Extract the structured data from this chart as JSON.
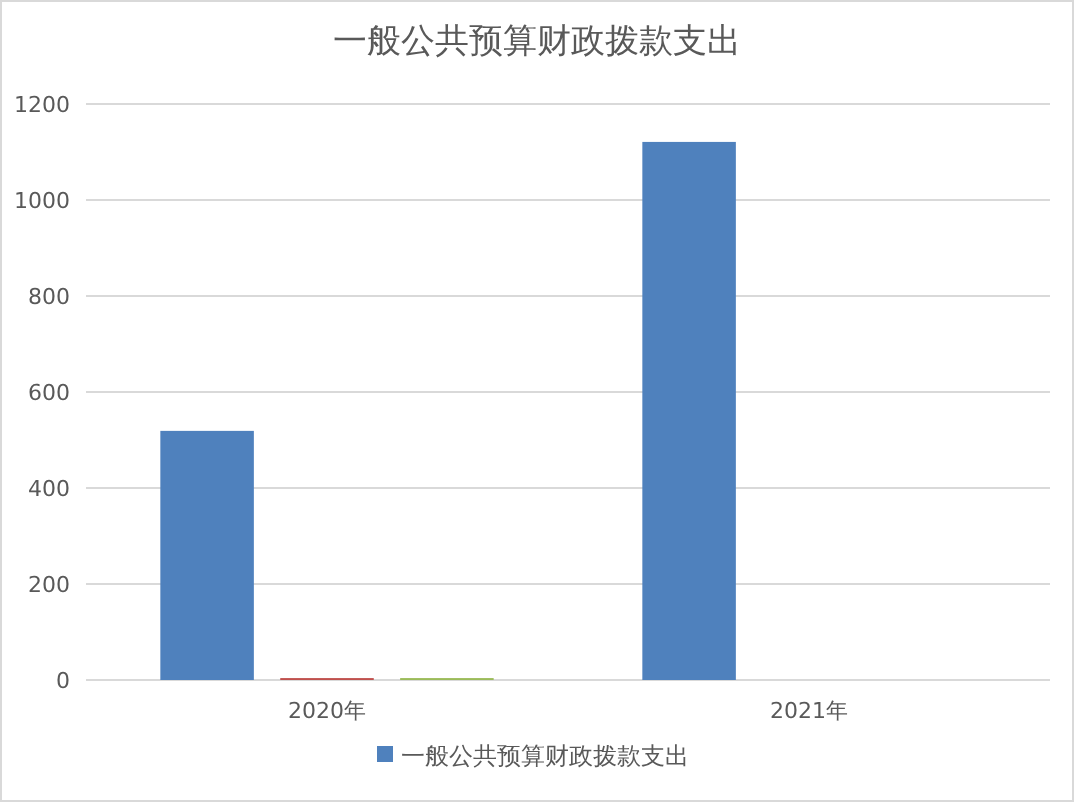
{
  "chart_data": {
    "type": "bar",
    "title": "一般公共预算财政拨款支出",
    "categories": [
      "2020年",
      "2021年"
    ],
    "series": [
      {
        "name": "一般公共预算财政拨款支出",
        "color": "#4f81bd",
        "values": [
          519,
          1121
        ]
      },
      {
        "color": "#c0504d",
        "values": [
          4,
          null
        ]
      },
      {
        "color": "#9bbb59",
        "values": [
          4,
          null
        ]
      }
    ],
    "ylim": [
      0,
      1200
    ],
    "yticks": [
      0,
      200,
      400,
      600,
      800,
      1000,
      1200
    ],
    "grid": "y",
    "legend": "bottom"
  }
}
